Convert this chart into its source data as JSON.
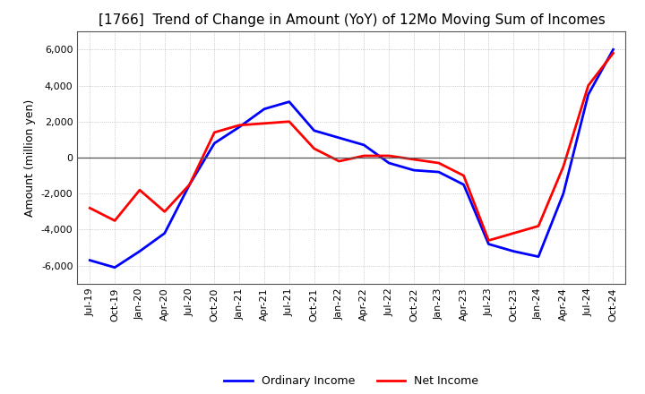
{
  "title": "[1766]  Trend of Change in Amount (YoY) of 12Mo Moving Sum of Incomes",
  "ylabel": "Amount (million yen)",
  "ylim": [
    -7000,
    7000
  ],
  "yticks": [
    -6000,
    -4000,
    -2000,
    0,
    2000,
    4000,
    6000
  ],
  "x_labels": [
    "Jul-19",
    "Oct-19",
    "Jan-20",
    "Apr-20",
    "Jul-20",
    "Oct-20",
    "Jan-21",
    "Apr-21",
    "Jul-21",
    "Oct-21",
    "Jan-22",
    "Apr-22",
    "Jul-22",
    "Oct-22",
    "Jan-23",
    "Apr-23",
    "Jul-23",
    "Oct-23",
    "Jan-24",
    "Apr-24",
    "Jul-24",
    "Oct-24"
  ],
  "ordinary_income": [
    -5700,
    -6100,
    -5200,
    -4200,
    -1500,
    800,
    1700,
    2700,
    3100,
    1500,
    1100,
    700,
    -300,
    -700,
    -800,
    -1500,
    -4800,
    -5200,
    -5500,
    -2000,
    3500,
    6000
  ],
  "net_income": [
    -2800,
    -3500,
    -1800,
    -3000,
    -1500,
    1400,
    1800,
    1900,
    2000,
    500,
    -200,
    100,
    100,
    -100,
    -300,
    -1000,
    -4600,
    -4200,
    -3800,
    -500,
    4000,
    5800
  ],
  "ordinary_color": "#0000ff",
  "net_color": "#ff0000",
  "grid_color": "#aaaaaa",
  "zero_line_color": "#555555",
  "border_color": "#555555",
  "background_color": "#ffffff",
  "title_fontsize": 11,
  "label_fontsize": 9,
  "tick_fontsize": 8,
  "legend_fontsize": 9,
  "line_width": 2.0
}
